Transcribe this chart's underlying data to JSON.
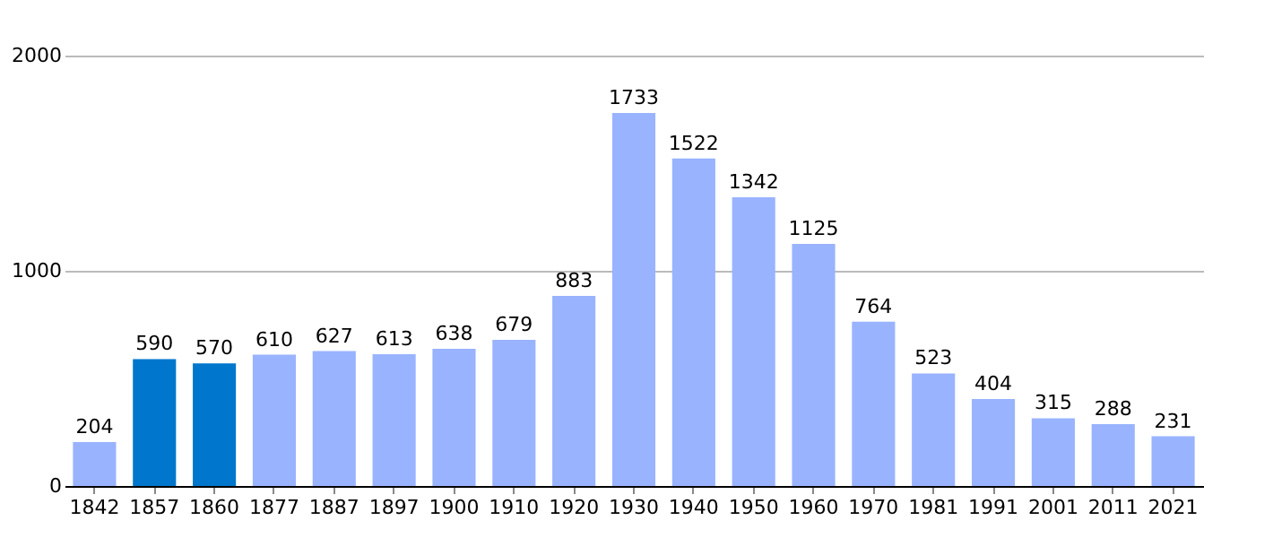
{
  "chart_data": {
    "type": "bar",
    "categories": [
      "1842",
      "1857",
      "1860",
      "1877",
      "1887",
      "1897",
      "1900",
      "1910",
      "1920",
      "1930",
      "1940",
      "1950",
      "1960",
      "1970",
      "1981",
      "1991",
      "2001",
      "2011",
      "2021"
    ],
    "values": [
      204,
      590,
      570,
      610,
      627,
      613,
      638,
      679,
      883,
      1733,
      1522,
      1342,
      1125,
      764,
      523,
      404,
      315,
      288,
      231
    ],
    "colors": [
      "#99b3ff",
      "#0077cc",
      "#0077cc",
      "#99b3ff",
      "#99b3ff",
      "#99b3ff",
      "#99b3ff",
      "#99b3ff",
      "#99b3ff",
      "#99b3ff",
      "#99b3ff",
      "#99b3ff",
      "#99b3ff",
      "#99b3ff",
      "#99b3ff",
      "#99b3ff",
      "#99b3ff",
      "#99b3ff",
      "#99b3ff"
    ],
    "ylim": [
      0,
      2000
    ],
    "yticks": [
      0,
      1000,
      2000
    ],
    "grid": "y",
    "data_labels": true
  }
}
